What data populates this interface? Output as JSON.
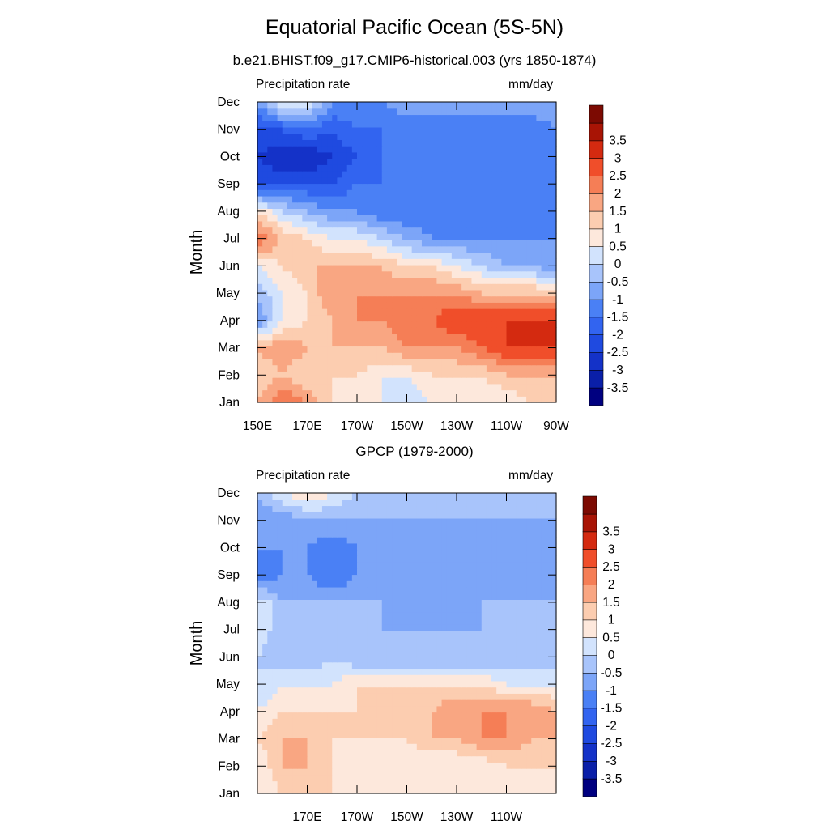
{
  "title": "Equatorial Pacific Ocean (5S-5N)",
  "subtitle": "b.e21.BHIST.f09_g17.CMIP6-historical.003 (yrs 1850-1874)",
  "colorbar": {
    "colors": [
      "#000080",
      "#0a1fa8",
      "#1432c8",
      "#1f4ae0",
      "#3264f0",
      "#4a80f5",
      "#7ca5f8",
      "#a8c4fb",
      "#d2e3fd",
      "#fde8dc",
      "#fccdb0",
      "#f9a682",
      "#f57e56",
      "#f04e2a",
      "#d42a10",
      "#a81405",
      "#7c0a02"
    ],
    "labels": [
      "-3.5",
      "-3",
      "-2.5",
      "-2",
      "-1.5",
      "-1",
      "-0.5",
      "0",
      "0.5",
      "1",
      "1.5",
      "2",
      "2.5",
      "3",
      "3.5"
    ]
  },
  "panels": [
    {
      "id": "model",
      "left_label": "Precipitation rate",
      "right_label": "mm/day",
      "ylabel": "Month",
      "months": [
        "Jan",
        "Feb",
        "Mar",
        "Apr",
        "May",
        "Jun",
        "Jul",
        "Aug",
        "Sep",
        "Oct",
        "Nov",
        "Dec"
      ],
      "lon_ticks": [
        "150E",
        "170E",
        "170W",
        "150W",
        "130W",
        "110W",
        "90W"
      ],
      "lon_tick_values": [
        150,
        170,
        190,
        210,
        230,
        250,
        270
      ],
      "chart_data": {
        "type": "heatmap",
        "title": "Equatorial Pacific Ocean (5S-5N)",
        "ylabel": "Month",
        "x": [
          150,
          160,
          170,
          180,
          190,
          200,
          210,
          220,
          230,
          240,
          250,
          260,
          270
        ],
        "xlim": [
          150,
          270
        ],
        "y": [
          "Jan",
          "Feb",
          "Mar",
          "Apr",
          "May",
          "Jun",
          "Jul",
          "Aug",
          "Sep",
          "Oct",
          "Nov",
          "Dec"
        ],
        "unit": "mm/day",
        "values": [
          [
            1.5,
            2.5,
            2.0,
            1.0,
            0.5,
            0.5,
            0.0,
            0.5,
            0.5,
            0.5,
            0.5,
            1.0,
            1.0
          ],
          [
            1.0,
            1.5,
            1.0,
            1.0,
            1.0,
            0.5,
            0.5,
            1.0,
            1.0,
            1.0,
            1.5,
            1.5,
            1.5
          ],
          [
            1.5,
            2.0,
            1.5,
            1.5,
            1.5,
            1.5,
            2.0,
            2.0,
            2.0,
            2.5,
            3.0,
            3.0,
            3.0
          ],
          [
            -1.0,
            0.5,
            1.0,
            1.5,
            2.0,
            2.0,
            2.5,
            2.5,
            3.0,
            3.0,
            3.0,
            3.0,
            3.0
          ],
          [
            -0.5,
            0.5,
            1.0,
            2.0,
            2.0,
            2.0,
            2.0,
            2.0,
            2.0,
            1.5,
            1.5,
            1.5,
            1.5
          ],
          [
            0.5,
            1.0,
            1.5,
            1.5,
            1.5,
            1.5,
            1.0,
            1.0,
            0.5,
            0.0,
            -0.5,
            -0.5,
            -1.0
          ],
          [
            2.5,
            1.5,
            1.0,
            0.5,
            0.5,
            0.0,
            -0.5,
            -1.0,
            -1.0,
            -1.0,
            -1.0,
            -1.0,
            -1.0
          ],
          [
            1.0,
            0.0,
            -0.5,
            -1.0,
            -1.0,
            -1.5,
            -1.5,
            -1.5,
            -1.5,
            -1.5,
            -1.5,
            -1.5,
            -1.5
          ],
          [
            -2.0,
            -2.0,
            -2.0,
            -2.0,
            -1.5,
            -1.5,
            -1.5,
            -1.5,
            -1.5,
            -1.5,
            -1.5,
            -1.5,
            -1.5
          ],
          [
            -2.5,
            -3.0,
            -3.0,
            -2.5,
            -2.0,
            -1.5,
            -1.5,
            -1.5,
            -1.5,
            -1.5,
            -1.5,
            -1.5,
            -1.5
          ],
          [
            -2.0,
            -2.0,
            -1.5,
            -2.0,
            -1.5,
            -1.5,
            -1.5,
            -1.5,
            -1.5,
            -1.5,
            -1.5,
            -1.5,
            -1.0
          ],
          [
            -1.0,
            0.5,
            0.5,
            -1.0,
            -1.0,
            -1.0,
            -0.5,
            -0.5,
            -0.5,
            -0.5,
            -0.5,
            -0.5,
            -0.5
          ]
        ]
      }
    },
    {
      "id": "gpcp",
      "title": "GPCP (1979-2000)",
      "left_label": "Precipitation rate",
      "right_label": "mm/day",
      "ylabel": "Month",
      "months": [
        "Jan",
        "Feb",
        "Mar",
        "Apr",
        "May",
        "Jun",
        "Jul",
        "Aug",
        "Sep",
        "Oct",
        "Nov",
        "Dec"
      ],
      "lon_ticks": [
        "170E",
        "170W",
        "150W",
        "130W",
        "110W"
      ],
      "lon_tick_values": [
        170,
        190,
        210,
        230,
        250
      ],
      "chart_data": {
        "type": "heatmap",
        "title": "GPCP (1979-2000)",
        "ylabel": "Month",
        "x": [
          150,
          160,
          170,
          180,
          190,
          200,
          210,
          220,
          230,
          240,
          250,
          260,
          270
        ],
        "xlim": [
          150,
          270
        ],
        "y": [
          "Jan",
          "Feb",
          "Mar",
          "Apr",
          "May",
          "Jun",
          "Jul",
          "Aug",
          "Sep",
          "Oct",
          "Nov",
          "Dec"
        ],
        "unit": "mm/day",
        "values": [
          [
            0.5,
            1.0,
            1.5,
            1.0,
            0.5,
            0.5,
            0.5,
            0.5,
            0.5,
            0.5,
            0.5,
            0.5,
            0.5
          ],
          [
            0.5,
            1.5,
            1.5,
            1.0,
            0.5,
            0.5,
            0.5,
            0.5,
            0.5,
            0.5,
            1.0,
            1.0,
            1.0
          ],
          [
            1.0,
            1.5,
            1.5,
            1.0,
            1.0,
            1.0,
            1.0,
            1.5,
            1.5,
            2.0,
            2.0,
            1.5,
            1.5
          ],
          [
            0.5,
            1.0,
            1.0,
            1.0,
            1.0,
            1.0,
            1.5,
            1.5,
            2.0,
            2.0,
            2.0,
            2.0,
            1.5
          ],
          [
            0.0,
            0.5,
            0.5,
            0.5,
            1.0,
            1.0,
            1.0,
            1.0,
            1.0,
            1.0,
            0.5,
            0.5,
            0.5
          ],
          [
            0.0,
            -0.5,
            -0.5,
            0.0,
            -0.5,
            -0.5,
            -0.5,
            -0.5,
            -0.5,
            -0.5,
            -0.5,
            -0.5,
            -0.5
          ],
          [
            0.5,
            -0.5,
            -0.5,
            -0.5,
            -0.5,
            -0.5,
            -0.5,
            -0.5,
            -0.5,
            -0.5,
            -0.5,
            -0.5,
            -0.5
          ],
          [
            0.5,
            -0.5,
            -0.5,
            -0.5,
            -0.5,
            -0.5,
            -1.0,
            -1.0,
            -1.0,
            -0.5,
            -0.5,
            -0.5,
            -0.5
          ],
          [
            -1.5,
            -1.0,
            -1.0,
            -1.5,
            -1.0,
            -1.0,
            -1.0,
            -1.0,
            -1.0,
            -1.0,
            -0.5,
            -1.0,
            -1.0
          ],
          [
            -1.0,
            -1.0,
            -1.0,
            -1.5,
            -1.0,
            -1.0,
            -1.0,
            -1.0,
            -1.0,
            -1.0,
            -0.5,
            -1.0,
            -1.0
          ],
          [
            -1.0,
            -1.0,
            -0.5,
            -0.5,
            -0.5,
            -0.5,
            -0.5,
            -0.5,
            -0.5,
            -0.5,
            -0.5,
            -0.5,
            -0.5
          ],
          [
            -0.5,
            0.5,
            1.0,
            0.5,
            0.0,
            0.0,
            -0.5,
            -0.5,
            -0.5,
            -0.5,
            -0.5,
            -0.5,
            -0.5
          ]
        ]
      }
    }
  ]
}
